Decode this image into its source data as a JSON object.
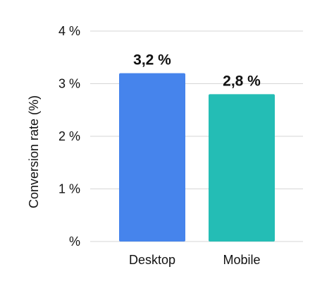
{
  "chart_data": {
    "type": "bar",
    "categories": [
      "Desktop",
      "Mobile"
    ],
    "values": [
      3.2,
      2.8
    ],
    "data_labels": [
      "3,2 %",
      "2,8 %"
    ],
    "title": "",
    "xlabel": "",
    "ylabel": "Conversion rate (%)",
    "ylim": [
      0,
      4
    ],
    "y_ticks": [
      0,
      1,
      2,
      3,
      4
    ],
    "y_tick_labels": [
      "%",
      "1 %",
      "2 %",
      "3 %",
      "4 %"
    ],
    "grid": true,
    "colors": [
      "#4684EC",
      "#24BDB5"
    ]
  }
}
